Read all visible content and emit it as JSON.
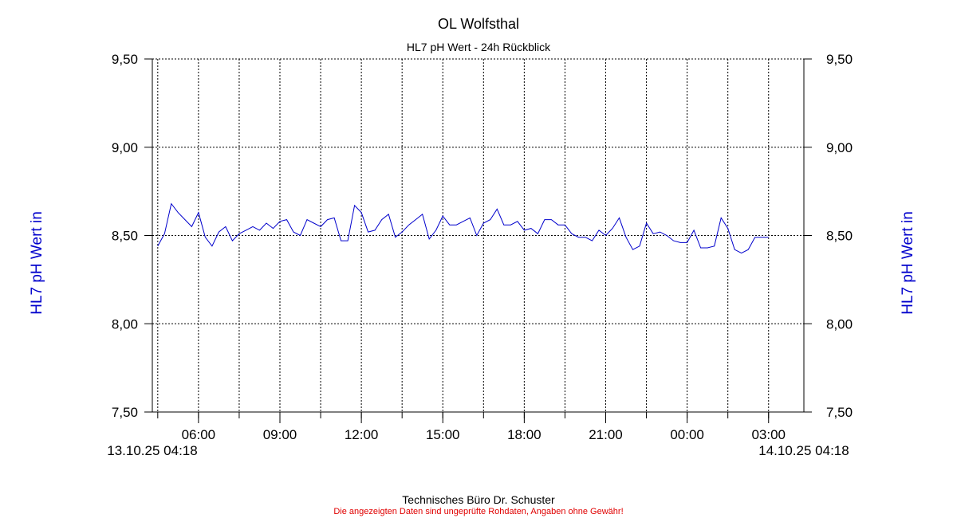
{
  "title": "OL Wolfsthal",
  "subtitle": "HL7 pH Wert - 24h Rückblick",
  "footer": {
    "company": "Technisches Büro Dr. Schuster",
    "disclaimer": "Die angezeigten Daten sind ungeprüfte Rohdaten, Angaben ohne Gewähr!"
  },
  "colors": {
    "line": "#0000cc",
    "axis_label": "#0000cc",
    "disclaimer": "#e00000",
    "grid": "#000000"
  },
  "chart_data": {
    "type": "line",
    "title": "OL Wolfsthal",
    "subtitle": "HL7 pH Wert - 24h Rückblick",
    "ylabel_left": "HL7 pH Wert in",
    "ylabel_right": "HL7 pH Wert in",
    "ylim": [
      7.5,
      9.5
    ],
    "yticks": [
      "7,50",
      "8,00",
      "8,50",
      "9,00",
      "9,50"
    ],
    "ytick_values": [
      7.5,
      8.0,
      8.5,
      9.0,
      9.5
    ],
    "xlim": [
      "13.10.25 04:18",
      "14.10.25 04:18"
    ],
    "start_label": "13.10.25 04:18",
    "end_label": "14.10.25 04:18",
    "xticks": [
      "06:00",
      "09:00",
      "12:00",
      "15:00",
      "18:00",
      "21:00",
      "00:00",
      "03:00"
    ],
    "xtick_hours": [
      6,
      9,
      12,
      15,
      18,
      21,
      24,
      27
    ],
    "grid": true,
    "series": [
      {
        "color": "#0000cc",
        "hours": [
          4.5,
          4.75,
          5.0,
          5.25,
          5.5,
          5.75,
          6.0,
          6.25,
          6.5,
          6.75,
          7.0,
          7.25,
          7.5,
          7.75,
          8.0,
          8.25,
          8.5,
          8.75,
          9.0,
          9.25,
          9.5,
          9.75,
          10.0,
          10.25,
          10.5,
          10.75,
          11.0,
          11.25,
          11.5,
          11.75,
          12.0,
          12.25,
          12.5,
          12.75,
          13.0,
          13.25,
          13.5,
          13.75,
          14.0,
          14.25,
          14.5,
          14.75,
          15.0,
          15.25,
          15.5,
          15.75,
          16.0,
          16.25,
          16.5,
          16.75,
          17.0,
          17.25,
          17.5,
          17.75,
          18.0,
          18.25,
          18.5,
          18.75,
          19.0,
          19.25,
          19.5,
          19.75,
          20.0,
          20.25,
          20.5,
          20.75,
          21.0,
          21.25,
          21.5,
          21.75,
          22.0,
          22.25,
          22.5,
          22.75,
          23.0,
          23.25,
          23.5,
          23.75,
          24.0,
          24.25,
          24.5,
          24.75,
          25.0,
          25.25,
          25.5,
          25.75,
          26.0,
          26.25,
          26.5,
          26.75,
          27.0
        ],
        "values": [
          8.44,
          8.51,
          8.68,
          8.63,
          8.59,
          8.55,
          8.63,
          8.49,
          8.44,
          8.52,
          8.55,
          8.47,
          8.51,
          8.53,
          8.55,
          8.53,
          8.57,
          8.54,
          8.58,
          8.59,
          8.52,
          8.5,
          8.59,
          8.57,
          8.55,
          8.59,
          8.6,
          8.47,
          8.47,
          8.67,
          8.63,
          8.52,
          8.53,
          8.59,
          8.62,
          8.49,
          8.52,
          8.56,
          8.59,
          8.62,
          8.48,
          8.53,
          8.61,
          8.56,
          8.56,
          8.58,
          8.6,
          8.5,
          8.57,
          8.59,
          8.65,
          8.56,
          8.56,
          8.58,
          8.53,
          8.54,
          8.51,
          8.59,
          8.59,
          8.56,
          8.56,
          8.51,
          8.49,
          8.49,
          8.47,
          8.53,
          8.5,
          8.54,
          8.6,
          8.49,
          8.42,
          8.44,
          8.57,
          8.51,
          8.52,
          8.5,
          8.47,
          8.46,
          8.46,
          8.53,
          8.43,
          8.43,
          8.44,
          8.6,
          8.54,
          8.42,
          8.4,
          8.42,
          8.49,
          8.49,
          8.49
        ]
      }
    ]
  }
}
